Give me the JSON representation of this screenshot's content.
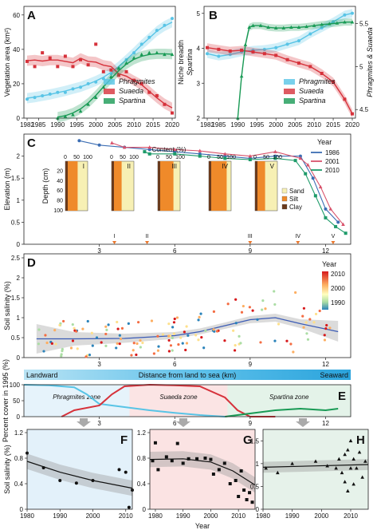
{
  "chart_data": [
    {
      "id": "A",
      "type": "line",
      "panel_letter": "A",
      "ylabel": "Vegetation area (km²)",
      "xlim": [
        1982,
        2020
      ],
      "ylim": [
        0,
        65
      ],
      "xticks": [
        1982,
        1985,
        1990,
        1995,
        2000,
        2005,
        2010,
        2015,
        2020
      ],
      "yticks": [
        0,
        20,
        40,
        60
      ],
      "legend": [
        {
          "name": "Phragmites",
          "color": "#58c4e6"
        },
        {
          "name": "Suaeda",
          "color": "#d6323b"
        },
        {
          "name": "Spartina",
          "color": "#199a55"
        }
      ],
      "series": [
        {
          "name": "Phragmites",
          "color": "#58c4e6",
          "x": [
            1982,
            1984,
            1986,
            1988,
            1990,
            1992,
            1994,
            1996,
            1998,
            2000,
            2002,
            2004,
            2006,
            2008,
            2010,
            2012,
            2014,
            2016,
            2018,
            2020
          ],
          "y": [
            11,
            12,
            13,
            14,
            15,
            15,
            17,
            18,
            20,
            21,
            23,
            26,
            29,
            34,
            38,
            43,
            47,
            51,
            54,
            58
          ]
        },
        {
          "name": "Suaeda",
          "color": "#d6323b",
          "x": [
            1982,
            1984,
            1986,
            1988,
            1990,
            1992,
            1994,
            1996,
            1998,
            2000,
            2002,
            2004,
            2006,
            2008,
            2010,
            2012,
            2014,
            2016,
            2018,
            2020
          ],
          "y": [
            33,
            30,
            38,
            35,
            30,
            36,
            30,
            34,
            31,
            43,
            27,
            28,
            25,
            27,
            22,
            20,
            15,
            13,
            8,
            3
          ]
        },
        {
          "name": "Spartina",
          "color": "#199a55",
          "x": [
            1990,
            1992,
            1994,
            1996,
            1998,
            2000,
            2002,
            2004,
            2006,
            2008,
            2010,
            2012,
            2014,
            2016,
            2018,
            2020
          ],
          "y": [
            0,
            1,
            2,
            4,
            8,
            12,
            18,
            24,
            29,
            32,
            35,
            37,
            38,
            38,
            37,
            37
          ]
        }
      ]
    },
    {
      "id": "B",
      "type": "line",
      "panel_letter": "B",
      "ylabel": "Niche breadth",
      "ylabel2": "Spartina",
      "y2label": "Phragmites & Suaeda",
      "xlim": [
        1982,
        2020
      ],
      "ylim": [
        2,
        5.2
      ],
      "y2lim": [
        4.4,
        5.7
      ],
      "xticks": [
        1982,
        1985,
        1990,
        1995,
        2000,
        2005,
        2010,
        2015,
        2020
      ],
      "yticks": [
        2,
        3,
        4,
        5
      ],
      "y2ticks": [
        4.5,
        5.0,
        5.5
      ],
      "legend": [
        {
          "name": "Phragmites",
          "color": "#58c4e6"
        },
        {
          "name": "Suaeda",
          "color": "#d6323b"
        },
        {
          "name": "Spartina",
          "color": "#199a55"
        }
      ],
      "series": [
        {
          "name": "Phragmites",
          "color": "#58c4e6",
          "axis": "right",
          "x": [
            1982,
            1985,
            1988,
            1991,
            1994,
            1997,
            2000,
            2003,
            2006,
            2009,
            2012,
            2015,
            2018,
            2020
          ],
          "y": [
            5.15,
            5.12,
            5.14,
            5.17,
            5.19,
            5.2,
            5.22,
            5.26,
            5.3,
            5.38,
            5.45,
            5.52,
            5.6,
            5.62
          ]
        },
        {
          "name": "Suaeda",
          "color": "#d6323b",
          "axis": "right",
          "x": [
            1982,
            1985,
            1988,
            1991,
            1994,
            1997,
            2000,
            2003,
            2006,
            2009,
            2012,
            2015,
            2018,
            2020
          ],
          "y": [
            5.22,
            5.2,
            5.18,
            5.19,
            5.17,
            5.15,
            5.13,
            5.08,
            5.04,
            5.0,
            4.92,
            4.82,
            4.62,
            4.45
          ]
        },
        {
          "name": "Spartina",
          "color": "#199a55",
          "axis": "left",
          "x": [
            1990,
            1991,
            1992,
            1993,
            1994,
            1996,
            1998,
            2000,
            2002,
            2004,
            2006,
            2008,
            2010,
            2012,
            2014,
            2016,
            2018,
            2020
          ],
          "y": [
            2.0,
            3.2,
            4.1,
            4.6,
            4.65,
            4.65,
            4.6,
            4.58,
            4.58,
            4.6,
            4.6,
            4.62,
            4.65,
            4.68,
            4.7,
            4.72,
            4.75,
            4.75
          ]
        }
      ]
    },
    {
      "id": "C",
      "type": "line",
      "panel_letter": "C",
      "ylabel": "Elevation (m)",
      "xlim": [
        0,
        13
      ],
      "ylim": [
        0,
        2.5
      ],
      "xticks": [
        3,
        6,
        9,
        12
      ],
      "yticks": [
        0.0,
        0.5,
        1.0,
        1.5,
        2.0
      ],
      "legend_title": "Year",
      "series": [
        {
          "name": "1986",
          "color": "#3b6db3",
          "x": [
            2.2,
            3,
            4,
            5,
            6,
            7,
            8,
            9,
            10,
            11,
            11.5,
            12,
            12.5
          ],
          "y": [
            2.35,
            2.25,
            2.2,
            2.15,
            2.1,
            2.05,
            2.0,
            1.95,
            2.0,
            2.0,
            1.5,
            0.8,
            0.5
          ]
        },
        {
          "name": "2001",
          "color": "#d8526b",
          "x": [
            3.5,
            4,
            5,
            6,
            7,
            8,
            9,
            10,
            11,
            11.3,
            11.8,
            12.2,
            12.7
          ],
          "y": [
            2.3,
            2.2,
            2.2,
            2.15,
            2.12,
            2.05,
            2.0,
            2.1,
            1.95,
            1.8,
            1.3,
            0.8,
            0.45
          ]
        },
        {
          "name": "2010",
          "color": "#1e9b6a",
          "x": [
            4.8,
            5,
            6,
            7,
            8,
            9,
            10,
            10.8,
            11.2,
            11.6,
            12,
            12.4,
            12.8
          ],
          "y": [
            2.1,
            2.05,
            2.05,
            2.0,
            1.95,
            1.92,
            1.95,
            1.9,
            1.6,
            1.1,
            0.6,
            0.4,
            0.25
          ]
        }
      ],
      "inset": {
        "content_label": "Content (%)",
        "depth_label": "Depth (cm)",
        "tick_labels": [
          "0",
          "50",
          "100"
        ],
        "depth_ticks": [
          "20",
          "40",
          "60",
          "80",
          "100"
        ],
        "profiles": [
          "I",
          "II",
          "III",
          "IV",
          "V"
        ],
        "site_positions": [
          3.6,
          4.9,
          9.0,
          10.9,
          12.3
        ],
        "legend": [
          {
            "name": "Sand",
            "color": "#f7f0b4"
          },
          {
            "name": "Silt",
            "color": "#ef8a2a"
          },
          {
            "name": "Clay",
            "color": "#6a3a1c"
          }
        ]
      }
    },
    {
      "id": "D",
      "type": "scatter",
      "panel_letter": "D",
      "ylabel": "Soil salinity (%)",
      "xlim": [
        0,
        13
      ],
      "ylim": [
        0,
        2.6
      ],
      "xticks": [
        3,
        6,
        9,
        12
      ],
      "yticks": [
        0.0,
        0.5,
        1.0,
        1.5,
        2.0,
        2.5
      ],
      "legend_title": "Year",
      "legend_ticks": [
        "2010",
        "2000",
        "1990"
      ],
      "trend": {
        "x": [
          0.5,
          2,
          4,
          6,
          7,
          8,
          9,
          10,
          11,
          12.5
        ],
        "y": [
          0.47,
          0.47,
          0.48,
          0.55,
          0.65,
          0.8,
          0.95,
          1.0,
          0.85,
          0.65
        ]
      },
      "band": {
        "x": [
          0.5,
          2,
          4,
          6,
          7,
          8,
          9,
          10,
          11,
          12.5
        ],
        "lo": [
          0.1,
          0.3,
          0.37,
          0.47,
          0.58,
          0.72,
          0.86,
          0.9,
          0.74,
          0.4
        ],
        "hi": [
          0.84,
          0.64,
          0.6,
          0.64,
          0.73,
          0.88,
          1.04,
          1.1,
          0.96,
          0.92
        ]
      }
    },
    {
      "id": "E",
      "type": "line",
      "panel_letter": "E",
      "title": "Distance from land to sea (km)",
      "left_label": "Landward",
      "right_label": "Seaward",
      "ylabel": "Percent cover in 1995 (%)",
      "ylim": [
        0,
        100
      ],
      "xticks": [
        3,
        6,
        9,
        12
      ],
      "yticks": [
        0,
        50,
        100
      ],
      "zones": [
        {
          "name": "Phragmites zone",
          "italic_part": "Phragmites",
          "color": "#e6f3fb"
        },
        {
          "name": "Suaeda zone",
          "italic_part": "Suaeda",
          "color": "#fbe4e4"
        },
        {
          "name": "Spartina zone",
          "italic_part": "Spartina",
          "color": "#e4f3e9"
        }
      ],
      "series": [
        {
          "name": "Phragmites",
          "color": "#58c4e6",
          "x": [
            0,
            1,
            2,
            2.5,
            3,
            4,
            5,
            6,
            7,
            8
          ],
          "y": [
            100,
            98,
            92,
            70,
            40,
            30,
            20,
            12,
            5,
            0
          ]
        },
        {
          "name": "Suaeda",
          "color": "#d6323b",
          "x": [
            1.5,
            2,
            3,
            3.5,
            4,
            5,
            6,
            7,
            8,
            8.5,
            9,
            10
          ],
          "y": [
            0,
            20,
            35,
            70,
            95,
            100,
            98,
            95,
            60,
            20,
            0,
            0
          ]
        },
        {
          "name": "Spartina",
          "color": "#199a55",
          "x": [
            8,
            9,
            10,
            11,
            12,
            12.5
          ],
          "y": [
            0,
            10,
            20,
            25,
            20,
            25
          ]
        }
      ]
    },
    {
      "id": "F",
      "type": "scatter",
      "panel_letter": "F",
      "ylabel": "Soil salinity (%)",
      "xlim": [
        1980,
        2012
      ],
      "ylim": [
        0,
        1.25
      ],
      "xticks": [
        1980,
        1990,
        2000,
        2010
      ],
      "yticks": [
        0.0,
        0.4,
        0.8,
        1.2
      ],
      "points_x": [
        1980,
        1985,
        1990,
        1995,
        2000,
        2008,
        2010,
        2011,
        2012
      ],
      "points_y": [
        0.88,
        0.65,
        0.45,
        0.41,
        0.45,
        0.62,
        0.58,
        0.03,
        0.3
      ],
      "fit_x": [
        1980,
        1990,
        2000,
        2012
      ],
      "fit_y": [
        0.75,
        0.58,
        0.45,
        0.33
      ]
    },
    {
      "id": "G",
      "type": "scatter",
      "panel_letter": "G",
      "xlabel": "Year",
      "xlim": [
        1978,
        2016
      ],
      "ylim": [
        0,
        1.25
      ],
      "xticks": [
        1980,
        1990,
        2000,
        2010
      ],
      "yticks": [
        0.0,
        0.4,
        0.8,
        1.2
      ],
      "points_x": [
        1979,
        1980,
        1981,
        1984,
        1986,
        1988,
        1990,
        1992,
        1995,
        1998,
        2000,
        2001,
        2003,
        2005,
        2007,
        2009,
        2010,
        2011,
        2012,
        2013,
        2014,
        2015
      ],
      "points_y": [
        0.76,
        1.04,
        0.62,
        0.82,
        0.76,
        1.03,
        0.72,
        0.79,
        0.79,
        0.8,
        0.78,
        0.55,
        0.62,
        0.72,
        0.4,
        0.45,
        0.2,
        0.6,
        0.3,
        0.15,
        0.26,
        0.11
      ],
      "fit_x": [
        1978,
        1990,
        2000,
        2008,
        2016
      ],
      "fit_y": [
        0.78,
        0.79,
        0.74,
        0.6,
        0.38
      ]
    },
    {
      "id": "H",
      "type": "scatter",
      "panel_letter": "H",
      "xlim": [
        1980,
        2016
      ],
      "ylim": [
        0,
        1.75
      ],
      "xticks": [
        1980,
        1990,
        2000,
        2010
      ],
      "yticks": [
        0.0,
        0.5,
        1.0,
        1.5
      ],
      "points_x": [
        1981,
        1985,
        1990,
        1998,
        2002,
        2005,
        2006,
        2007,
        2008,
        2008,
        2009,
        2009,
        2010,
        2010,
        2011,
        2011,
        2012,
        2013,
        2014,
        2015
      ],
      "points_y": [
        0.9,
        0.8,
        1.0,
        1.05,
        0.95,
        0.9,
        1.1,
        0.8,
        1.2,
        0.6,
        1.3,
        0.4,
        1.5,
        0.9,
        1.1,
        0.55,
        0.9,
        1.25,
        0.7,
        1.05
      ],
      "fit_x": [
        1980,
        2016
      ],
      "fit_y": [
        0.92,
        0.98
      ]
    }
  ]
}
